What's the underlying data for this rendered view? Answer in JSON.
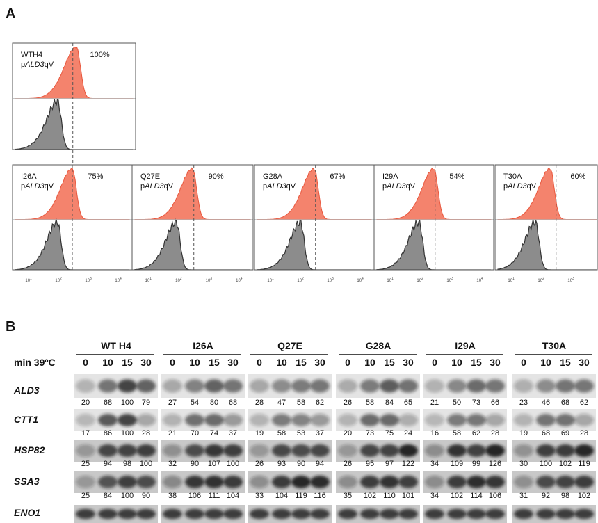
{
  "panel_a": {
    "label": "A",
    "x_tick_labels": [
      {
        "base": "10",
        "exponent": "1"
      },
      {
        "base": "10",
        "exponent": "2"
      },
      {
        "base": "10",
        "exponent": "3"
      },
      {
        "base": "10",
        "exponent": "4"
      }
    ],
    "histograms": [
      {
        "name": "WTH4",
        "construct": {
          "prefix": "p",
          "gene": "ALD3",
          "suffix": "qV"
        },
        "percent": "100%"
      },
      {
        "name": "I26A",
        "construct": {
          "prefix": "p",
          "gene": "ALD3",
          "suffix": "qV"
        },
        "percent": "75%"
      },
      {
        "name": "Q27E",
        "construct": {
          "prefix": "p",
          "gene": "ALD3",
          "suffix": "qV"
        },
        "percent": "90%"
      },
      {
        "name": "G28A",
        "construct": {
          "prefix": "p",
          "gene": "ALD3",
          "suffix": "qV"
        },
        "percent": "67%"
      },
      {
        "name": "I29A",
        "construct": {
          "prefix": "p",
          "gene": "ALD3",
          "suffix": "qV"
        },
        "percent": "54%"
      },
      {
        "name": "T30A",
        "construct": {
          "prefix": "p",
          "gene": "ALD3",
          "suffix": "qV"
        },
        "percent": "60%"
      }
    ]
  },
  "panel_b": {
    "label": "B",
    "time_label": "min 39ºC",
    "groups": [
      {
        "name": "WT H4",
        "times": [
          "0",
          "10",
          "15",
          "30"
        ]
      },
      {
        "name": "I26A",
        "times": [
          "0",
          "10",
          "15",
          "30"
        ]
      },
      {
        "name": "Q27E",
        "times": [
          "0",
          "10",
          "15",
          "30"
        ]
      },
      {
        "name": "G28A",
        "times": [
          "0",
          "10",
          "15",
          "30"
        ]
      },
      {
        "name": "I29A",
        "times": [
          "0",
          "10",
          "15",
          "30"
        ]
      },
      {
        "name": "T30A",
        "times": [
          "0",
          "10",
          "15",
          "30"
        ]
      }
    ],
    "rows": [
      {
        "gene": "ALD3",
        "values": [
          [
            20,
            68,
            100,
            79
          ],
          [
            27,
            54,
            80,
            68
          ],
          [
            28,
            47,
            58,
            62
          ],
          [
            26,
            58,
            84,
            65
          ],
          [
            21,
            50,
            73,
            66
          ],
          [
            23,
            46,
            68,
            62
          ]
        ]
      },
      {
        "gene": "CTT1",
        "values": [
          [
            17,
            86,
            100,
            28
          ],
          [
            21,
            70,
            74,
            37
          ],
          [
            19,
            58,
            53,
            37
          ],
          [
            20,
            73,
            75,
            24
          ],
          [
            16,
            58,
            62,
            28
          ],
          [
            19,
            68,
            69,
            28
          ]
        ]
      },
      {
        "gene": "HSP82",
        "values": [
          [
            25,
            94,
            98,
            100
          ],
          [
            32,
            90,
            107,
            100
          ],
          [
            26,
            93,
            90,
            94
          ],
          [
            26,
            95,
            97,
            122
          ],
          [
            34,
            109,
            99,
            126
          ],
          [
            30,
            100,
            102,
            119
          ]
        ]
      },
      {
        "gene": "SSA3",
        "values": [
          [
            25,
            84,
            100,
            90
          ],
          [
            38,
            106,
            111,
            104
          ],
          [
            33,
            104,
            119,
            116
          ],
          [
            35,
            102,
            110,
            101
          ],
          [
            34,
            102,
            114,
            106
          ],
          [
            31,
            92,
            98,
            102
          ]
        ]
      },
      {
        "gene": "ENO1"
      }
    ]
  }
}
